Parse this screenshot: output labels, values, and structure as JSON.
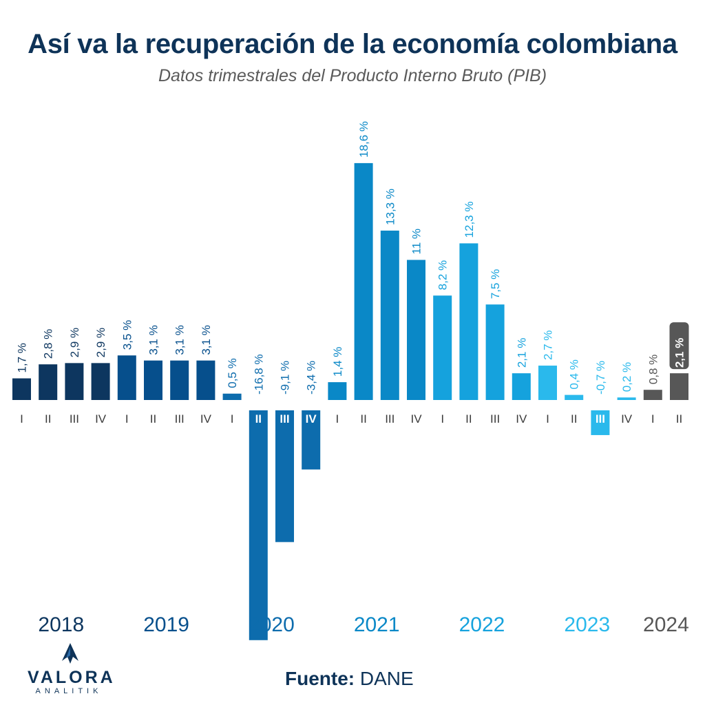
{
  "header": {
    "title": "Así va la recuperación de la economía colombiana",
    "subtitle": "Datos trimestrales del Producto Interno Bruto (PIB)"
  },
  "footer": {
    "source_label": "Fuente:",
    "source_value": "DANE"
  },
  "logo": {
    "name": "VALORA",
    "tagline": "ANALITIK"
  },
  "chart_data": {
    "type": "bar",
    "title": "Así va la recuperación de la economía colombiana",
    "subtitle": "Datos trimestrales del Producto Interno Bruto (PIB)",
    "xlabel": "",
    "ylabel": "",
    "ylim": [
      -16.8,
      18.6
    ],
    "grid": false,
    "legend": "none",
    "unit_suffix": " %",
    "categories": [
      "I",
      "II",
      "III",
      "IV",
      "I",
      "II",
      "III",
      "IV",
      "I",
      "II",
      "III",
      "IV",
      "I",
      "II",
      "III",
      "IV",
      "I",
      "II",
      "III",
      "IV",
      "I",
      "II",
      "III",
      "IV",
      "I",
      "II"
    ],
    "years": [
      "2018",
      "2018",
      "2018",
      "2018",
      "2019",
      "2019",
      "2019",
      "2019",
      "2020",
      "2020",
      "2020",
      "2020",
      "2021",
      "2021",
      "2021",
      "2021",
      "2022",
      "2022",
      "2022",
      "2022",
      "2023",
      "2023",
      "2023",
      "2023",
      "2024",
      "2024"
    ],
    "values": [
      1.7,
      2.8,
      2.9,
      2.9,
      3.5,
      3.1,
      3.1,
      3.1,
      0.5,
      -16.8,
      -9.1,
      -3.4,
      1.4,
      18.6,
      13.3,
      11,
      8.2,
      12.3,
      7.5,
      2.1,
      2.7,
      0.4,
      -0.7,
      0.2,
      0.8,
      2.1
    ],
    "labels": [
      "1,7 %",
      "2,8 %",
      "2,9 %",
      "2,9 %",
      "3,5 %",
      "3,1 %",
      "3,1 %",
      "3,1 %",
      "0,5 %",
      "-16,8 %",
      "-9,1 %",
      "-3,4 %",
      "1,4 %",
      "18,6 %",
      "13,3 %",
      "11 %",
      "8,2 %",
      "12,3 %",
      "7,5 %",
      "2,1 %",
      "2,7 %",
      "0,4 %",
      "-0,7 %",
      "0,2 %",
      "0,8 %",
      "2,1 %"
    ],
    "year_labels": [
      "2018",
      "2019",
      "2020",
      "2021",
      "2022",
      "2023",
      "2024"
    ],
    "year_colors": {
      "2018": "#0d365f",
      "2019": "#064f8c",
      "2020": "#0d6cad",
      "2021": "#0a88c7",
      "2022": "#15a2dd",
      "2023": "#2ab9ec",
      "2024": "#575757"
    },
    "highlight_last_label": true
  }
}
